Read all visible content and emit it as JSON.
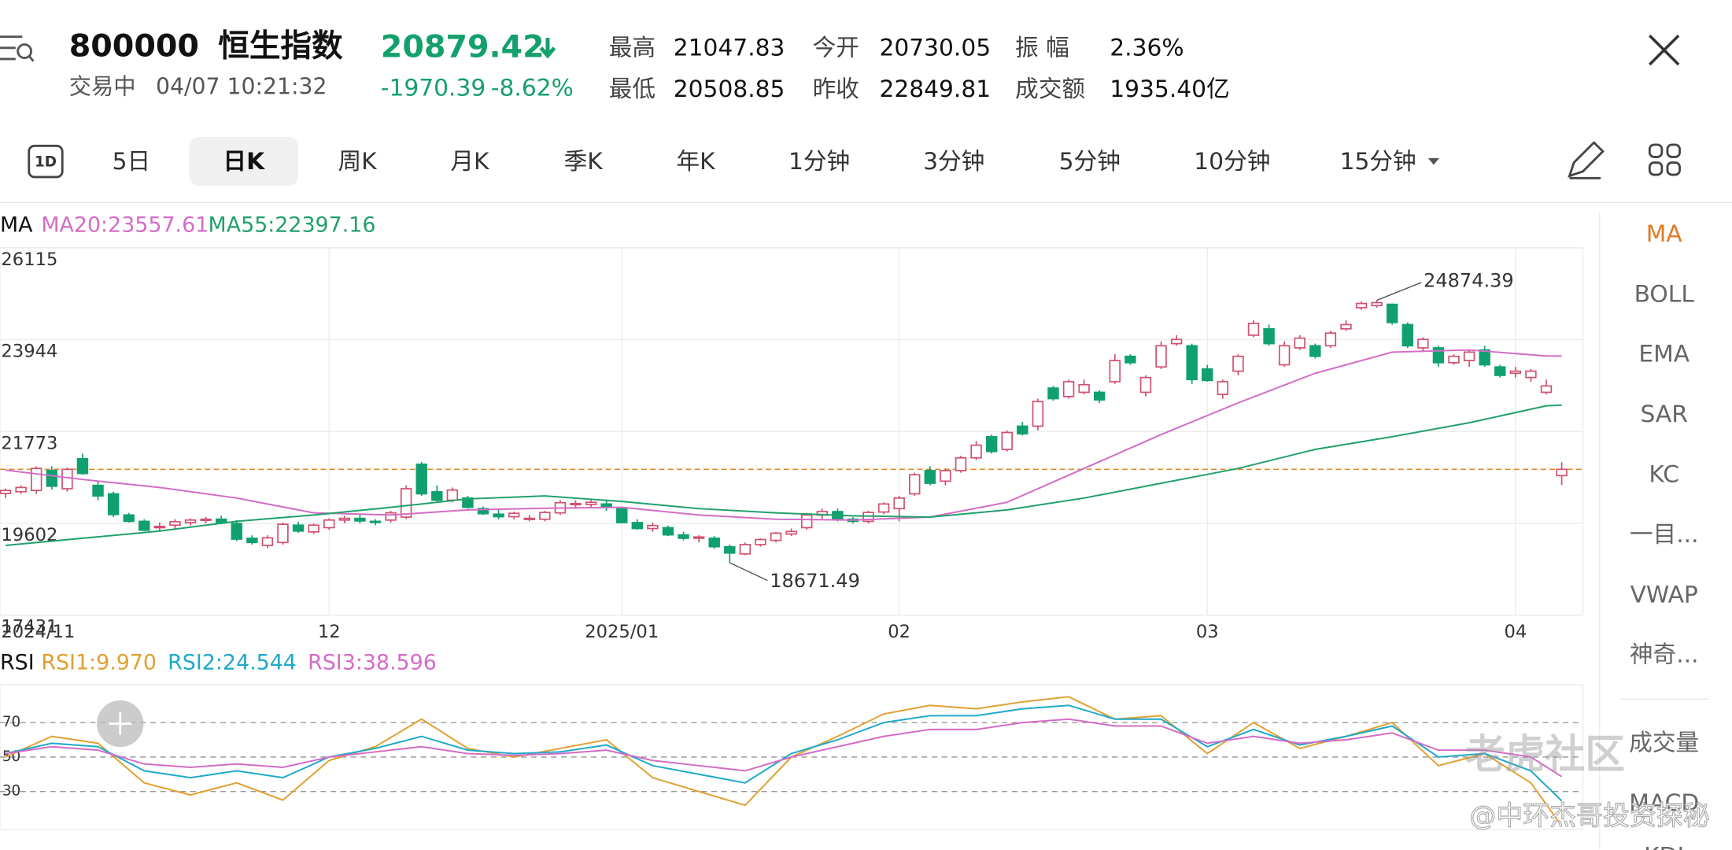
{
  "header": {
    "code": "800000",
    "name": "恒生指数",
    "price": "20879.42",
    "status": "交易中",
    "time": "04/07 10:21:32",
    "change": "-1970.39",
    "change_pct": "-8.62%",
    "stats": [
      {
        "label": "最高",
        "value": "21047.83"
      },
      {
        "label": "今开",
        "value": "20730.05"
      },
      {
        "label": "振 幅",
        "value": "2.36%"
      },
      {
        "label": "最低",
        "value": "20508.85"
      },
      {
        "label": "昨收",
        "value": "22849.81"
      },
      {
        "label": "成交额",
        "value": "1935.40亿"
      }
    ]
  },
  "tabs": [
    "1D",
    "5日",
    "日K",
    "周K",
    "月K",
    "季K",
    "年K",
    "1分钟",
    "3分钟",
    "5分钟",
    "10分钟",
    "15分钟"
  ],
  "side_menu": [
    "MA",
    "BOLL",
    "EMA",
    "SAR",
    "KC",
    "一目...",
    "VWAP",
    "神奇...",
    "成交量",
    "MACD",
    "KDJ"
  ],
  "watermark": [
    "老虎社区",
    "@中环杰哥投资探秘"
  ],
  "chart_data": [
    {
      "type": "candlestick",
      "legend_title": "MA",
      "categories": [
        "2024/11",
        null,
        null,
        null,
        null,
        null,
        null,
        null,
        null,
        null,
        null,
        null,
        null,
        null,
        null,
        null,
        null,
        null,
        null,
        null,
        null,
        "12",
        null,
        null,
        null,
        null,
        null,
        null,
        null,
        null,
        null,
        null,
        null,
        null,
        null,
        null,
        null,
        null,
        null,
        null,
        "2025/01",
        null,
        null,
        null,
        null,
        null,
        null,
        null,
        null,
        null,
        null,
        null,
        null,
        null,
        null,
        null,
        null,
        null,
        "02",
        null,
        null,
        null,
        null,
        null,
        null,
        null,
        null,
        null,
        null,
        null,
        null,
        null,
        null,
        null,
        null,
        null,
        null,
        null,
        "03",
        null,
        null,
        null,
        null,
        null,
        null,
        null,
        null,
        null,
        null,
        null,
        null,
        null,
        null,
        null,
        null,
        null,
        null,
        null,
        "04",
        null,
        null,
        null
      ],
      "open": [
        20310,
        20350,
        20380,
        20850,
        20420,
        21130,
        20500,
        20300,
        19800,
        19650,
        19500,
        19560,
        19620,
        19680,
        19700,
        19600,
        19250,
        19080,
        19150,
        19560,
        19400,
        19500,
        19680,
        19720,
        19650,
        19680,
        19750,
        21000,
        20350,
        20150,
        20200,
        19950,
        19820,
        19760,
        19700,
        19700,
        19850,
        20050,
        20050,
        20060,
        19950,
        19620,
        19480,
        19500,
        19330,
        19250,
        19250,
        19050,
        18880,
        19100,
        19200,
        19350,
        19500,
        19800,
        19880,
        19700,
        19650,
        19870,
        19950,
        20300,
        20850,
        20600,
        20850,
        21150,
        21650,
        21350,
        21900,
        21900,
        22800,
        22600,
        22700,
        22700,
        22950,
        23550,
        22700,
        23300,
        23850,
        23800,
        23250,
        22650,
        23200,
        24050,
        24200,
        23350,
        23750,
        23800,
        23800,
        24200,
        24700,
        24750,
        24780,
        24300,
        23750,
        23750,
        23400,
        23450,
        23700,
        23300,
        23150,
        23050,
        22700,
        20730.05
      ],
      "high": [
        20420,
        20500,
        20950,
        20950,
        20920,
        21250,
        20600,
        20350,
        19850,
        19700,
        19620,
        19700,
        19720,
        19750,
        19780,
        19680,
        19320,
        19320,
        19620,
        19640,
        19600,
        19720,
        19780,
        19800,
        19700,
        19900,
        20500,
        21050,
        20500,
        20450,
        20250,
        20000,
        19950,
        19880,
        19800,
        19900,
        20150,
        20150,
        20150,
        20150,
        19980,
        19700,
        19620,
        19550,
        19400,
        19320,
        19300,
        19100,
        19150,
        19250,
        19400,
        19480,
        19850,
        19950,
        19950,
        19750,
        19900,
        20100,
        20250,
        20800,
        20950,
        20900,
        21200,
        21550,
        21700,
        21800,
        22000,
        22550,
        22850,
        23000,
        23000,
        22750,
        23600,
        23600,
        23100,
        23900,
        24050,
        23850,
        23350,
        23000,
        23600,
        24400,
        24300,
        23900,
        24050,
        23850,
        24150,
        24400,
        24850,
        24874.39,
        24800,
        24350,
        24000,
        23800,
        23600,
        23700,
        23800,
        23350,
        23300,
        23250,
        23000,
        21047.83
      ],
      "low": [
        20200,
        20300,
        20300,
        20400,
        20350,
        20750,
        20150,
        19750,
        19620,
        19420,
        19400,
        19480,
        19550,
        19600,
        19580,
        19180,
        19100,
        19020,
        19100,
        19380,
        19350,
        19450,
        19600,
        19600,
        19560,
        19620,
        19700,
        20250,
        20100,
        20100,
        19950,
        19800,
        19700,
        19700,
        19650,
        19650,
        19800,
        19950,
        19980,
        19900,
        19600,
        19450,
        19400,
        19300,
        19200,
        19150,
        19000,
        18671.49,
        18850,
        19050,
        19150,
        19300,
        19450,
        19700,
        19650,
        19600,
        19600,
        19820,
        19650,
        20250,
        20500,
        20500,
        20800,
        21100,
        21250,
        21300,
        21680,
        21800,
        22500,
        22550,
        22650,
        22450,
        22900,
        23350,
        22600,
        23250,
        23800,
        22900,
        22950,
        22550,
        23100,
        24000,
        23800,
        23300,
        23700,
        23500,
        23750,
        24150,
        24650,
        24700,
        24300,
        23750,
        23650,
        23300,
        23350,
        23300,
        23300,
        23050,
        23050,
        22950,
        22650,
        20508.85
      ],
      "close": [
        20380,
        20450,
        20900,
        20480,
        20880,
        20780,
        20250,
        19810,
        19650,
        19440,
        19530,
        19640,
        19680,
        19700,
        19610,
        19230,
        19150,
        19260,
        19580,
        19420,
        19560,
        19680,
        19720,
        19660,
        19640,
        19850,
        20420,
        20300,
        20150,
        20390,
        19980,
        19830,
        19760,
        19840,
        19720,
        19860,
        20090,
        20070,
        20100,
        20000,
        19620,
        19480,
        19550,
        19330,
        19250,
        19280,
        19050,
        18900,
        19100,
        19220,
        19370,
        19410,
        19800,
        19880,
        19700,
        19650,
        19860,
        20060,
        20200,
        20750,
        20550,
        20850,
        21150,
        21450,
        21300,
        21750,
        21720,
        22480,
        22550,
        22950,
        22880,
        22520,
        23450,
        23400,
        23050,
        23800,
        23950,
        23000,
        22980,
        22950,
        23550,
        24330,
        23850,
        23800,
        23980,
        23550,
        24100,
        24300,
        24800,
        24820,
        24350,
        23800,
        23950,
        23400,
        23550,
        23650,
        23350,
        23100,
        23200,
        23200,
        22850,
        20879.42
      ],
      "up_color": "#d2506e",
      "down_color": "#10a070",
      "last_price_color": "#e08a2a",
      "lines": [
        {
          "name": "MA20:23557.61",
          "color": "#d36cc6",
          "x": [
            0,
            5,
            10,
            15,
            20,
            25,
            30,
            35,
            40,
            45,
            50,
            55,
            60,
            65,
            70,
            75,
            80,
            85,
            90,
            95,
            100,
            101
          ],
          "values": [
            20860,
            20640,
            20450,
            20200,
            19850,
            19800,
            19920,
            19960,
            19980,
            19800,
            19700,
            19680,
            19750,
            20100,
            20900,
            21700,
            22450,
            23150,
            23650,
            23700,
            23560,
            23557.61
          ]
        },
        {
          "name": "MA55:22397.16",
          "color": "#22a06b",
          "x": [
            0,
            5,
            10,
            15,
            20,
            25,
            30,
            35,
            40,
            45,
            50,
            55,
            60,
            65,
            70,
            75,
            80,
            85,
            90,
            95,
            100,
            101
          ],
          "values": [
            19080,
            19250,
            19420,
            19650,
            19800,
            19980,
            20180,
            20250,
            20120,
            19950,
            19850,
            19780,
            19750,
            19920,
            20200,
            20550,
            20900,
            21350,
            21650,
            21980,
            22380,
            22397.16
          ]
        }
      ],
      "ylim": [
        17431,
        26115
      ],
      "yticks": [
        26115,
        23944,
        21773,
        19602,
        17431
      ],
      "max_label": 24874.39,
      "min_label": 18671.49,
      "grid": true
    },
    {
      "type": "line",
      "legend_title": "RSI",
      "series": [
        {
          "name": "RSI1:9.970",
          "color": "#e0a030",
          "x": [
            0,
            3,
            6,
            9,
            12,
            15,
            18,
            21,
            24,
            27,
            30,
            33,
            36,
            39,
            42,
            45,
            48,
            51,
            54,
            57,
            60,
            63,
            66,
            69,
            72,
            75,
            78,
            81,
            84,
            87,
            90,
            93,
            96,
            99,
            101
          ],
          "values": [
            50,
            62,
            58,
            35,
            28,
            35,
            25,
            48,
            56,
            72,
            55,
            50,
            55,
            60,
            38,
            30,
            22,
            50,
            62,
            75,
            80,
            78,
            82,
            85,
            72,
            74,
            52,
            70,
            55,
            62,
            70,
            45,
            52,
            35,
            9.97
          ]
        },
        {
          "name": "RSI2:24.544",
          "color": "#1fa9c9",
          "x": [
            0,
            3,
            6,
            9,
            12,
            15,
            18,
            21,
            24,
            27,
            30,
            33,
            36,
            39,
            42,
            45,
            48,
            51,
            54,
            57,
            60,
            63,
            66,
            69,
            72,
            75,
            78,
            81,
            84,
            87,
            90,
            93,
            96,
            99,
            101
          ],
          "values": [
            52,
            58,
            56,
            42,
            38,
            42,
            38,
            50,
            55,
            62,
            54,
            52,
            53,
            57,
            45,
            40,
            35,
            52,
            60,
            70,
            74,
            74,
            78,
            80,
            72,
            72,
            56,
            66,
            57,
            62,
            68,
            50,
            52,
            42,
            24.544
          ]
        },
        {
          "name": "RSI3:38.596",
          "color": "#d36cc6",
          "x": [
            0,
            3,
            6,
            9,
            12,
            15,
            18,
            21,
            24,
            27,
            30,
            33,
            36,
            39,
            42,
            45,
            48,
            51,
            54,
            57,
            60,
            63,
            66,
            69,
            72,
            75,
            78,
            81,
            84,
            87,
            90,
            93,
            96,
            99,
            101
          ],
          "values": [
            52,
            56,
            54,
            46,
            44,
            46,
            44,
            50,
            53,
            56,
            52,
            51,
            52,
            54,
            48,
            45,
            42,
            50,
            56,
            62,
            66,
            66,
            70,
            72,
            68,
            68,
            58,
            62,
            58,
            60,
            64,
            54,
            54,
            50,
            38.596
          ]
        }
      ],
      "ylim": [
        8,
        92
      ],
      "yticks": [
        70,
        50,
        30
      ],
      "grid": true
    }
  ]
}
